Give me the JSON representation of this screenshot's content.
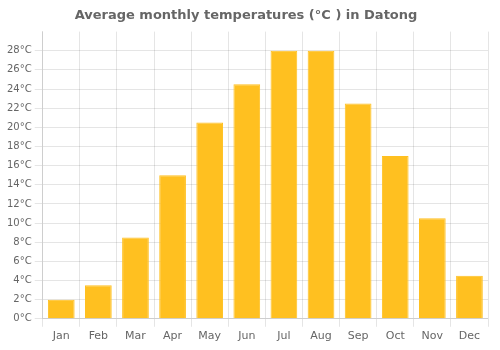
{
  "chart_data": {
    "type": "bar",
    "title": "Average monthly temperatures (°C ) in Datong",
    "categories": [
      "Jan",
      "Feb",
      "Mar",
      "Apr",
      "May",
      "Jun",
      "Jul",
      "Aug",
      "Sep",
      "Oct",
      "Nov",
      "Dec"
    ],
    "values": [
      2,
      3.5,
      8.5,
      15,
      20.5,
      24.5,
      28,
      28,
      22.5,
      17,
      10.5,
      4.5
    ],
    "color": "#FFC020",
    "ylim": [
      0,
      30
    ],
    "yticks": [
      {
        "value": 0,
        "label": "0°C"
      },
      {
        "value": 2,
        "label": "2°C"
      },
      {
        "value": 4,
        "label": "4°C"
      },
      {
        "value": 6,
        "label": "6°C"
      },
      {
        "value": 8,
        "label": "8°C"
      },
      {
        "value": 10,
        "label": "10°C"
      },
      {
        "value": 12,
        "label": "12°C"
      },
      {
        "value": 14,
        "label": "14°C"
      },
      {
        "value": 16,
        "label": "16°C"
      },
      {
        "value": 18,
        "label": "18°C"
      },
      {
        "value": 20,
        "label": "20°C"
      },
      {
        "value": 22,
        "label": "22°C"
      },
      {
        "value": 24,
        "label": "24°C"
      },
      {
        "value": 26,
        "label": "26°C"
      },
      {
        "value": 28,
        "label": "28°C"
      }
    ],
    "grid": true
  }
}
